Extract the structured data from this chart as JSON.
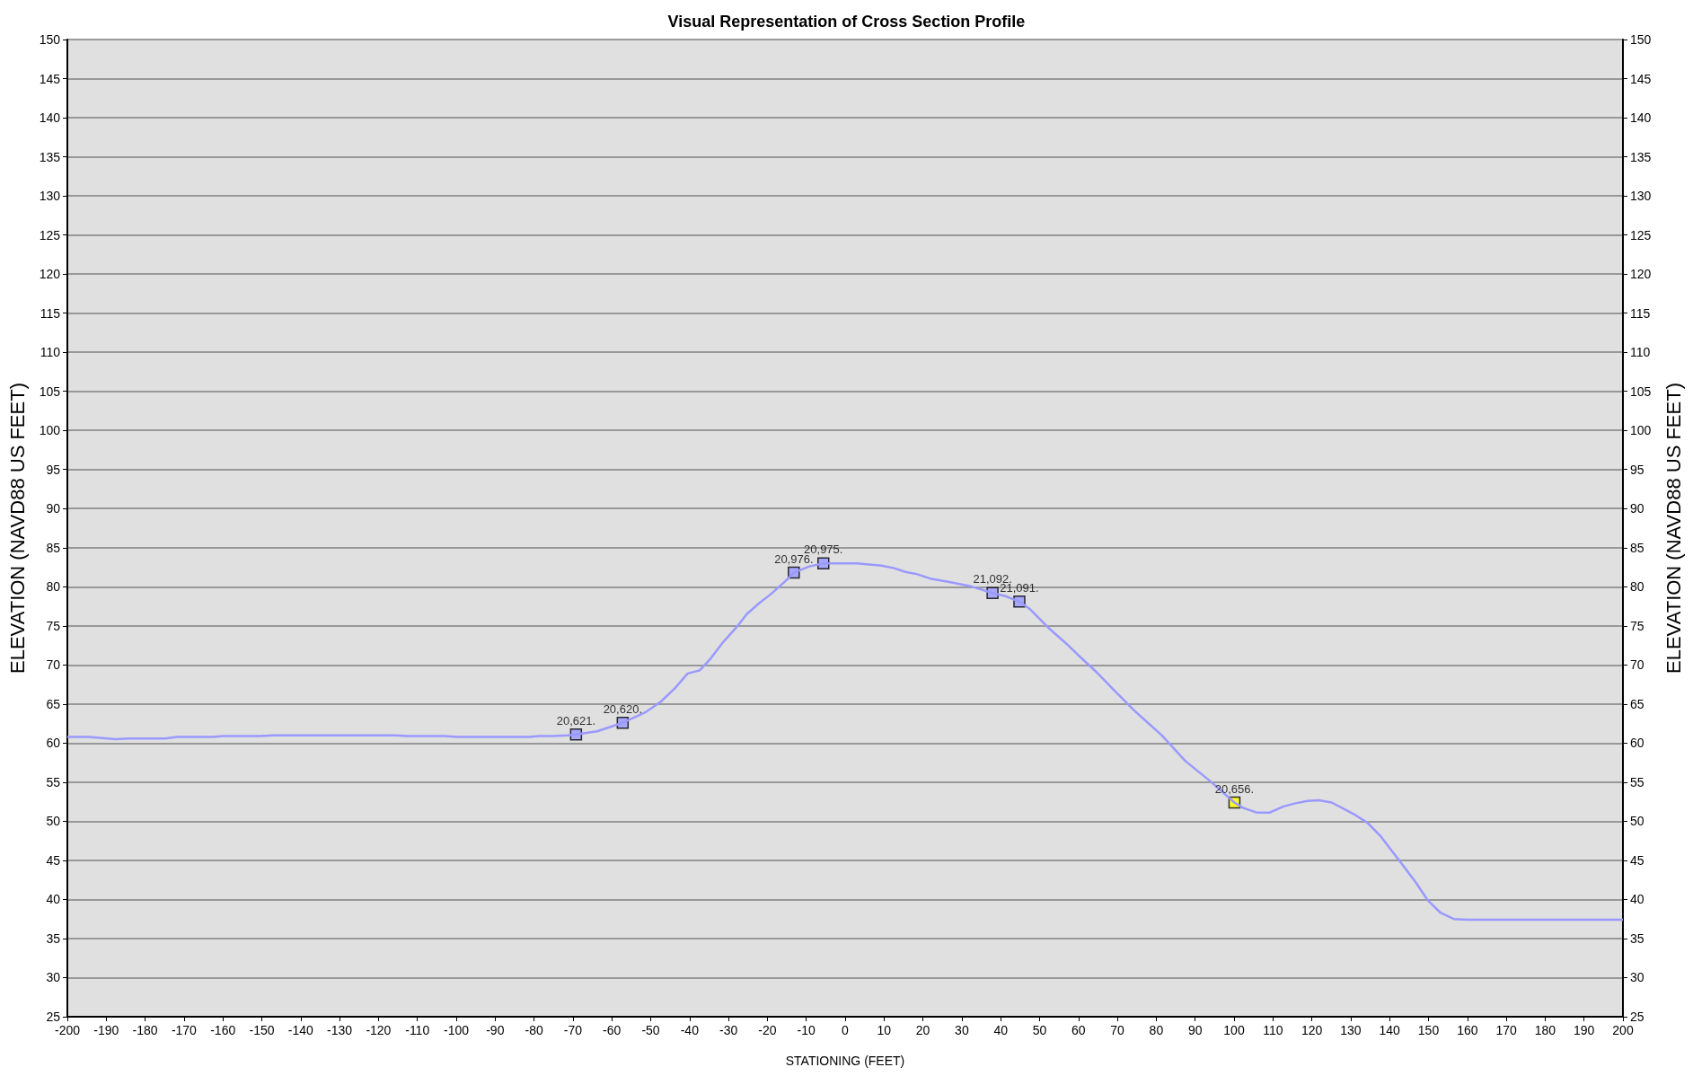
{
  "chart_data": {
    "type": "line",
    "title": "Visual Representation of Cross Section Profile",
    "xlabel": "STATIONING (FEET)",
    "ylabel": "ELEVATION (NAVD88 US FEET)",
    "y2label": "ELEVATION (NAVD88 US FEET)",
    "xlim": [
      -200,
      200
    ],
    "xticks": [
      -200,
      -190,
      -180,
      -170,
      -160,
      -150,
      -140,
      -130,
      -120,
      -110,
      -100,
      -90,
      -80,
      -70,
      -60,
      -50,
      -40,
      -30,
      -20,
      -10,
      0,
      10,
      20,
      30,
      40,
      50,
      60,
      70,
      80,
      90,
      100,
      110,
      120,
      130,
      140,
      150,
      160,
      170,
      180,
      190,
      200
    ],
    "ylim": [
      25,
      150
    ],
    "yticks": [
      25,
      30,
      35,
      40,
      45,
      50,
      55,
      60,
      65,
      70,
      75,
      80,
      85,
      90,
      95,
      100,
      105,
      110,
      115,
      120,
      125,
      130,
      135,
      140,
      145,
      150
    ],
    "y2lim": [
      25,
      150
    ],
    "y2ticks": [
      25,
      30,
      35,
      40,
      45,
      50,
      55,
      60,
      65,
      70,
      75,
      80,
      85,
      90,
      95,
      100,
      105,
      110,
      115,
      120,
      125,
      130,
      135,
      140,
      145,
      150
    ],
    "grid": "y",
    "series": [
      {
        "color": "#9999ff",
        "marker": "none",
        "x": [
          -200,
          -194.5,
          -187.6,
          -184.2,
          -174.9,
          -171.8,
          -162.6,
          -160,
          -150.3,
          -147.1,
          -115.7,
          -112.6,
          -102.9,
          -99.8,
          -81.3,
          -78.7,
          -75.1,
          -71.5,
          -69.2,
          -63.8,
          -57.2,
          -51.5,
          -47.4,
          -43.8,
          -40.5,
          -37.4,
          -34.6,
          -31.4,
          -27.8,
          -25.3,
          -22.1,
          -19,
          -15.4,
          -13.2,
          -9.2,
          -5.6,
          0,
          3.1,
          9.3,
          12.4,
          15.5,
          18.6,
          22.2,
          26.8,
          32,
          37.9,
          41.2,
          44.8,
          47.4,
          52.6,
          56.7,
          60.7,
          64.8,
          68.9,
          74.7,
          81.4,
          87.5,
          93.7,
          100.1,
          102.4,
          106,
          109.1,
          112.7,
          115.8,
          118.9,
          121.8,
          125.1,
          131.2,
          134.3,
          137.5,
          142.6,
          146.7,
          149.8,
          153.1,
          156.5,
          160.1,
          200
        ],
        "values": [
          60.8,
          60.8,
          60.5,
          60.6,
          60.6,
          60.8,
          60.8,
          60.9,
          60.9,
          61,
          61,
          60.9,
          60.9,
          60.8,
          60.8,
          60.9,
          60.9,
          61,
          61.1,
          61.5,
          62.6,
          63.9,
          65.3,
          67,
          68.9,
          69.3,
          70.8,
          72.9,
          74.9,
          76.5,
          77.9,
          79.1,
          80.7,
          81.8,
          82.6,
          83,
          83,
          83,
          82.7,
          82.4,
          81.9,
          81.6,
          81,
          80.6,
          80.1,
          79.2,
          78.8,
          78.1,
          77.2,
          74.6,
          72.8,
          70.9,
          69,
          66.9,
          64,
          61,
          57.7,
          55.2,
          52.4,
          51.7,
          51.1,
          51.1,
          51.9,
          52.3,
          52.6,
          52.7,
          52.4,
          50.8,
          49.8,
          48.2,
          44.9,
          42.2,
          39.9,
          38.3,
          37.5,
          37.4,
          37.4
        ]
      },
      {
        "type": "scatter",
        "color": "#9999ff",
        "marker": "square",
        "x": [
          -69.2,
          -57.2,
          -13.2,
          -5.6,
          37.9,
          44.8
        ],
        "values": [
          61.1,
          62.6,
          81.8,
          83,
          79.2,
          78.1
        ]
      },
      {
        "type": "scatter",
        "color": "#ffff00",
        "marker": "square",
        "x": [
          100.1
        ],
        "values": [
          52.4
        ]
      }
    ],
    "annotations": [
      {
        "text": "20,621.",
        "x": -69.2,
        "y": 61.1
      },
      {
        "text": "20,620.",
        "x": -57.2,
        "y": 62.6
      },
      {
        "text": "20,976.",
        "x": -13.2,
        "y": 81.8
      },
      {
        "text": "20,975.",
        "x": -5.6,
        "y": 83
      },
      {
        "text": "21,092.",
        "x": 37.9,
        "y": 79.2
      },
      {
        "text": "21,091.",
        "x": 44.8,
        "y": 78.1
      },
      {
        "text": "20,656.",
        "x": 100.1,
        "y": 52.4
      }
    ]
  }
}
